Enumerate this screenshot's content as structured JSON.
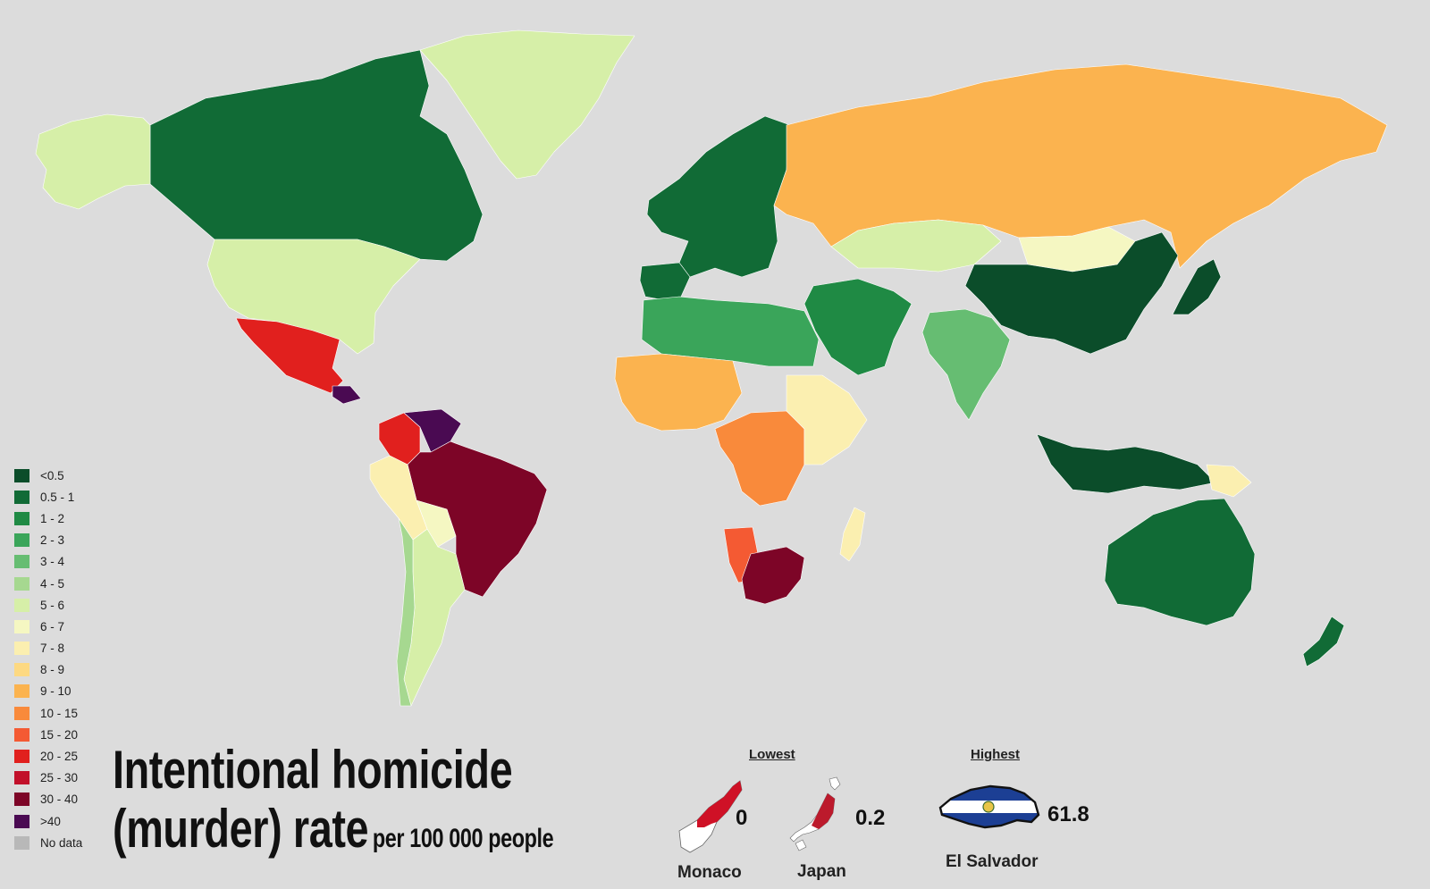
{
  "title": {
    "line1": "Intentional homicide",
    "line2": "(murder) rate",
    "subtitle": "per 100 000 people"
  },
  "legend": [
    {
      "label": "<0.5",
      "color": "#0b4d2a"
    },
    {
      "label": "0.5 - 1",
      "color": "#116b36"
    },
    {
      "label": "1 - 2",
      "color": "#1f8a44"
    },
    {
      "label": "2 - 3",
      "color": "#3aa55a"
    },
    {
      "label": "3 - 4",
      "color": "#66bd72"
    },
    {
      "label": "4 - 5",
      "color": "#a6d890"
    },
    {
      "label": "5 - 6",
      "color": "#d6efa8"
    },
    {
      "label": "6 - 7",
      "color": "#f5f7c2"
    },
    {
      "label": "7 - 8",
      "color": "#fbefb0"
    },
    {
      "label": "8 - 9",
      "color": "#fdd982"
    },
    {
      "label": "9 - 10",
      "color": "#fbb34f"
    },
    {
      "label": "10 - 15",
      "color": "#f98a3b"
    },
    {
      "label": "15 - 20",
      "color": "#f45a33"
    },
    {
      "label": "20 - 25",
      "color": "#e1201e"
    },
    {
      "label": "25 - 30",
      "color": "#c2102a"
    },
    {
      "label": "30 - 40",
      "color": "#7d0527"
    },
    {
      "label": ">40",
      "color": "#4a0a52"
    },
    {
      "label": "No data",
      "color": "#b8b8b8"
    }
  ],
  "lowest": {
    "heading": "Lowest",
    "items": [
      {
        "name": "Monaco",
        "value": "0"
      },
      {
        "name": "Japan",
        "value": "0.2"
      }
    ]
  },
  "highest": {
    "heading": "Highest",
    "items": [
      {
        "name": "El Salvador",
        "value": "61.8"
      }
    ]
  },
  "regions": [
    {
      "name": "Canada",
      "bin": "0.5 - 1"
    },
    {
      "name": "Alaska",
      "bin": "5 - 6"
    },
    {
      "name": "Greenland",
      "bin": "5 - 6"
    },
    {
      "name": "United States",
      "bin": "5 - 6"
    },
    {
      "name": "Mexico",
      "bin": "20 - 25"
    },
    {
      "name": "Honduras",
      "bin": ">40"
    },
    {
      "name": "Colombia",
      "bin": "20 - 25"
    },
    {
      "name": "Venezuela",
      "bin": ">40"
    },
    {
      "name": "Brazil",
      "bin": "30 - 40"
    },
    {
      "name": "Argentina",
      "bin": "5 - 6"
    },
    {
      "name": "Chile",
      "bin": "4 - 5"
    },
    {
      "name": "Peru",
      "bin": "7 - 8"
    },
    {
      "name": "Bolivia",
      "bin": "6 - 7"
    },
    {
      "name": "Western Europe",
      "bin": "0.5 - 1"
    },
    {
      "name": "Iberia",
      "bin": "0.5 - 1"
    },
    {
      "name": "Russia",
      "bin": "9 - 10"
    },
    {
      "name": "Kazakhstan",
      "bin": "5 - 6"
    },
    {
      "name": "Mongolia",
      "bin": "6 - 7"
    },
    {
      "name": "China",
      "bin": "<0.5"
    },
    {
      "name": "Japan",
      "bin": "<0.5"
    },
    {
      "name": "India",
      "bin": "3 - 4"
    },
    {
      "name": "Middle East",
      "bin": "1 - 2"
    },
    {
      "name": "North Africa",
      "bin": "2 - 3"
    },
    {
      "name": "West Africa",
      "bin": "9 - 10"
    },
    {
      "name": "Central Africa",
      "bin": "10 - 15"
    },
    {
      "name": "East Africa",
      "bin": "7 - 8"
    },
    {
      "name": "Namibia",
      "bin": "15 - 20"
    },
    {
      "name": "South Africa",
      "bin": "30 - 40"
    },
    {
      "name": "Madagascar",
      "bin": "7 - 8"
    },
    {
      "name": "Indonesia",
      "bin": "<0.5"
    },
    {
      "name": "Australia",
      "bin": "0.5 - 1"
    },
    {
      "name": "New Zealand",
      "bin": "0.5 - 1"
    },
    {
      "name": "Papua New Guinea",
      "bin": "7 - 8"
    }
  ]
}
